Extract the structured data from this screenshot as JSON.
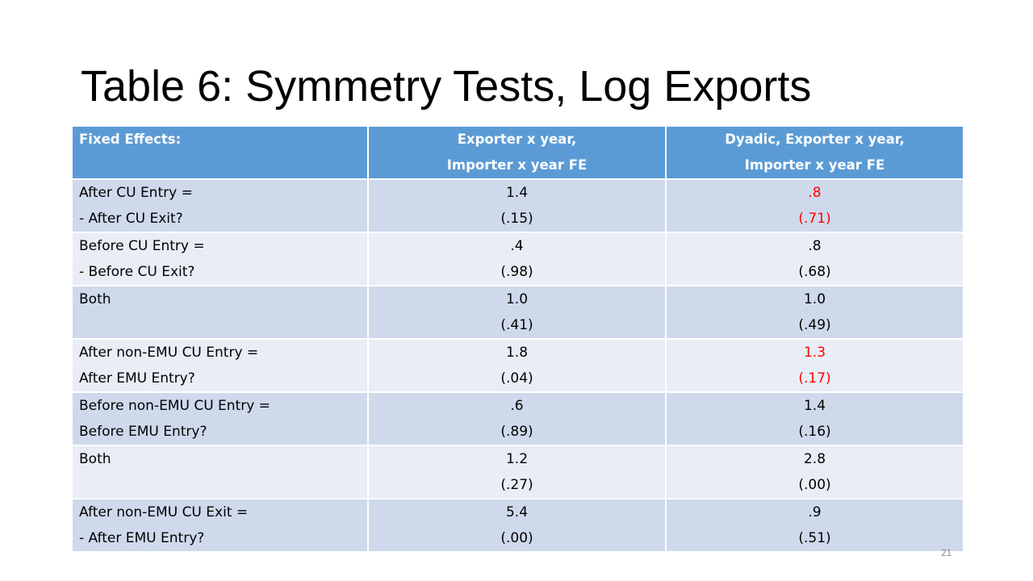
{
  "title": "Table 6: Symmetry Tests, Log Exports",
  "table": {
    "headers": [
      [
        "Fixed Effects:"
      ],
      [
        "Exporter x year,",
        "Importer x year FE"
      ],
      [
        "Dyadic, Exporter x year,",
        "Importer x year FE"
      ]
    ],
    "rows": [
      {
        "label": [
          "After CU Entry =",
          "- After CU Exit?"
        ],
        "col1": [
          "1.4",
          "(.15)"
        ],
        "col2": [
          ".8",
          "(.71)"
        ],
        "col2_highlight": true
      },
      {
        "label": [
          "Before CU Entry =",
          "- Before CU Exit?"
        ],
        "col1": [
          ".4",
          "(.98)"
        ],
        "col2": [
          ".8",
          "(.68)"
        ],
        "col2_highlight": false
      },
      {
        "label": [
          "Both"
        ],
        "col1": [
          "1.0",
          "(.41)"
        ],
        "col2": [
          "1.0",
          "(.49)"
        ],
        "col2_highlight": false
      },
      {
        "label": [
          "After non-EMU CU Entry =",
          "After EMU Entry?"
        ],
        "col1": [
          "1.8",
          "(.04)"
        ],
        "col2": [
          "1.3",
          "(.17)"
        ],
        "col2_highlight": true
      },
      {
        "label": [
          "Before non-EMU CU Entry =",
          "Before EMU Entry?"
        ],
        "col1": [
          ".6",
          "(.89)"
        ],
        "col2": [
          "1.4",
          "(.16)"
        ],
        "col2_highlight": false
      },
      {
        "label": [
          "Both"
        ],
        "col1": [
          "1.2",
          "(.27)"
        ],
        "col2": [
          "2.8",
          "(.00)"
        ],
        "col2_highlight": false
      },
      {
        "label": [
          "After non-EMU CU Exit =",
          "- After EMU Entry?"
        ],
        "col1": [
          "5.4",
          "(.00)"
        ],
        "col2": [
          ".9",
          "(.51)"
        ],
        "col2_highlight": false
      }
    ]
  },
  "page_number": "21",
  "colors": {
    "header_bg": "#5b9bd5",
    "row_odd_bg": "#cfd9ec",
    "row_even_bg": "#e9edf5",
    "highlight": "#ff0000"
  }
}
